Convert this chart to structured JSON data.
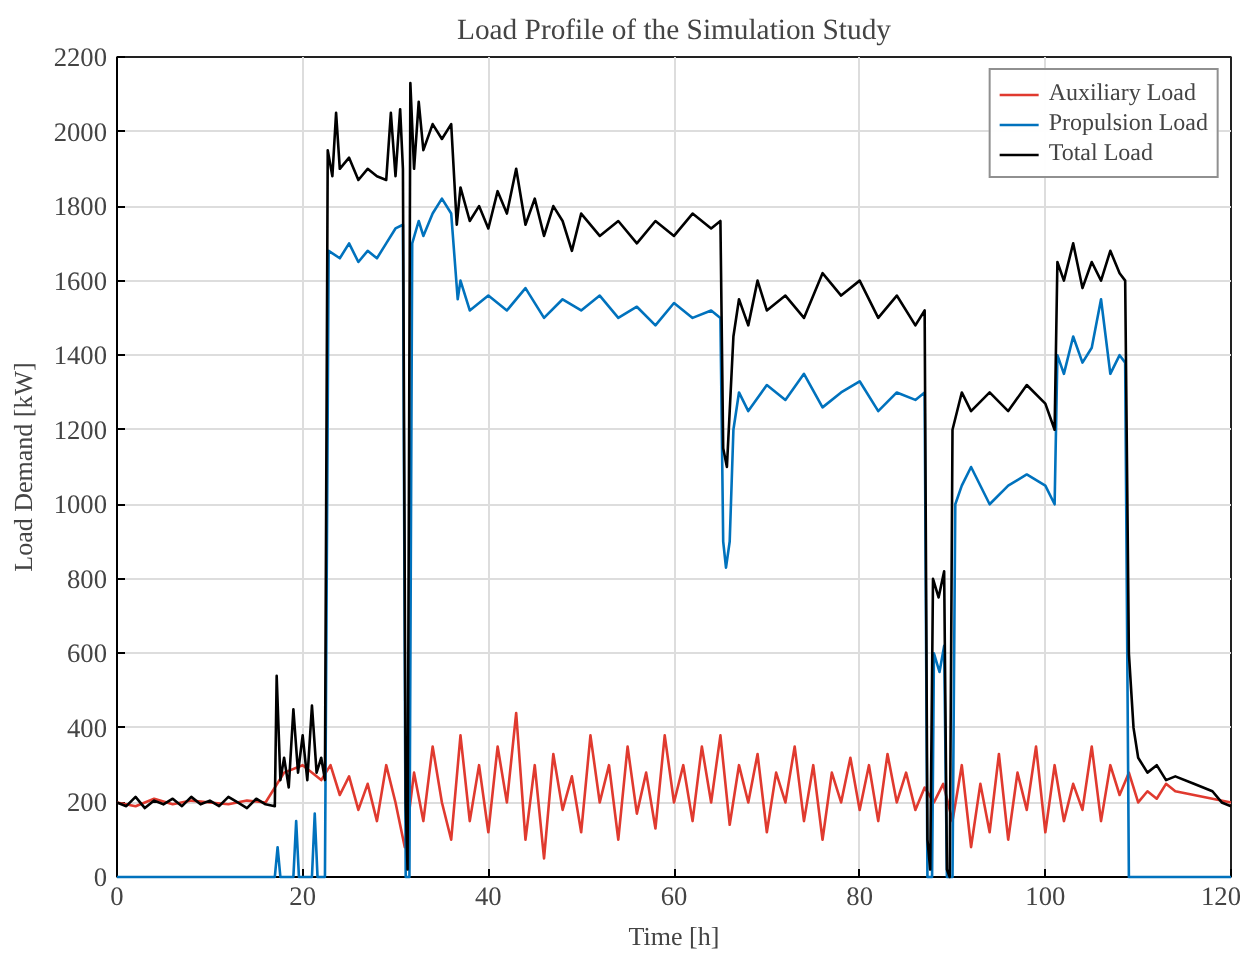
{
  "chart_data": {
    "type": "line",
    "title": "Load Profile of the Simulation Study",
    "xlabel": "Time [h]",
    "ylabel": "Load Demand [kW]",
    "xlim": [
      0,
      120
    ],
    "xticks": [
      0,
      20,
      40,
      60,
      80,
      100,
      120
    ],
    "ylim": [
      0,
      2200
    ],
    "yticks": [
      0,
      200,
      400,
      600,
      800,
      1000,
      1200,
      1400,
      1600,
      1800,
      2000,
      2200
    ],
    "grid": true,
    "legend": "top right",
    "line_style": "solid",
    "series": [
      {
        "name": "Auxiliary Load",
        "color": "#e03a2f",
        "x": [
          0,
          2,
          4,
          6,
          8,
          10,
          12,
          14,
          16,
          18,
          20,
          22,
          23,
          24,
          25,
          26,
          27,
          28,
          29,
          30,
          31,
          32,
          33,
          34,
          35,
          36,
          37,
          38,
          39,
          40,
          41,
          42,
          43,
          44,
          45,
          46,
          47,
          48,
          49,
          50,
          51,
          52,
          53,
          54,
          55,
          56,
          57,
          58,
          59,
          60,
          61,
          62,
          63,
          64,
          65,
          66,
          67,
          68,
          69,
          70,
          71,
          72,
          73,
          74,
          75,
          76,
          77,
          78,
          79,
          80,
          81,
          82,
          83,
          84,
          85,
          86,
          87,
          88,
          89,
          90,
          91,
          92,
          93,
          94,
          95,
          96,
          97,
          98,
          99,
          100,
          101,
          102,
          103,
          104,
          105,
          106,
          107,
          108,
          109,
          110,
          111,
          112,
          113,
          114,
          116,
          118,
          120
        ],
        "values": [
          200,
          190,
          210,
          195,
          205,
          200,
          195,
          205,
          200,
          280,
          300,
          260,
          300,
          220,
          270,
          180,
          250,
          150,
          300,
          200,
          80,
          280,
          150,
          350,
          200,
          100,
          380,
          150,
          300,
          120,
          350,
          200,
          440,
          100,
          300,
          50,
          330,
          180,
          270,
          120,
          380,
          200,
          300,
          100,
          350,
          170,
          280,
          130,
          380,
          200,
          300,
          150,
          350,
          200,
          380,
          140,
          300,
          200,
          330,
          120,
          280,
          200,
          350,
          150,
          300,
          100,
          280,
          200,
          320,
          180,
          300,
          150,
          330,
          200,
          280,
          180,
          240,
          200,
          250,
          150,
          300,
          80,
          250,
          120,
          330,
          100,
          280,
          180,
          350,
          120,
          300,
          150,
          250,
          180,
          350,
          150,
          300,
          220,
          280,
          200,
          230,
          210,
          250,
          230,
          220,
          210,
          200
        ]
      },
      {
        "name": "Propulsion Load",
        "color": "#0072bd",
        "x": [
          0,
          17,
          17.3,
          17.6,
          19,
          19.3,
          19.6,
          21,
          21.3,
          21.6,
          22.4,
          22.8,
          24,
          25,
          26,
          27,
          28,
          29,
          30,
          30.8,
          31.1,
          31.5,
          31.8,
          32.5,
          33,
          34,
          35,
          36,
          36.7,
          37,
          38,
          40,
          42,
          44,
          46,
          48,
          50,
          52,
          54,
          56,
          58,
          60,
          62,
          64,
          65,
          65.3,
          65.6,
          66,
          66.4,
          67,
          68,
          70,
          72,
          74,
          76,
          78,
          80,
          82,
          84,
          86,
          87,
          87.3,
          87.8,
          88,
          88.6,
          89.1,
          89.4,
          90,
          90.3,
          91,
          92,
          94,
          96,
          98,
          100,
          101,
          101.3,
          102,
          103,
          104,
          105,
          106,
          107,
          108,
          108.6,
          109,
          120
        ],
        "values": [
          0,
          0,
          80,
          0,
          0,
          150,
          0,
          0,
          170,
          0,
          0,
          1680,
          1660,
          1700,
          1650,
          1680,
          1660,
          1700,
          1740,
          1750,
          0,
          0,
          1700,
          1760,
          1720,
          1780,
          1820,
          1780,
          1550,
          1600,
          1520,
          1560,
          1520,
          1580,
          1500,
          1550,
          1520,
          1560,
          1500,
          1530,
          1480,
          1540,
          1500,
          1520,
          1500,
          900,
          830,
          900,
          1200,
          1300,
          1250,
          1320,
          1280,
          1350,
          1260,
          1300,
          1330,
          1250,
          1300,
          1280,
          1300,
          0,
          0,
          600,
          550,
          620,
          0,
          0,
          1000,
          1050,
          1100,
          1000,
          1050,
          1080,
          1050,
          1000,
          1400,
          1350,
          1450,
          1380,
          1420,
          1550,
          1350,
          1400,
          1380,
          0,
          0
        ]
      },
      {
        "name": "Total Load",
        "color": "#000000",
        "x": [
          0,
          1,
          2,
          3,
          4,
          5,
          6,
          7,
          8,
          9,
          10,
          11,
          12,
          13,
          14,
          15,
          16,
          17,
          17.2,
          17.6,
          18,
          18.5,
          19,
          19.5,
          20,
          20.5,
          21,
          21.5,
          22,
          22.4,
          22.7,
          23.2,
          23.6,
          24,
          25,
          26,
          27,
          28,
          29,
          29.5,
          30,
          30.5,
          30.8,
          31.1,
          31.3,
          31.6,
          32,
          32.5,
          33,
          34,
          35,
          36,
          36.6,
          37,
          38,
          39,
          40,
          41,
          42,
          43,
          44,
          45,
          46,
          47,
          48,
          49,
          50,
          52,
          54,
          56,
          58,
          60,
          62,
          64,
          65,
          65.3,
          65.7,
          66,
          66.4,
          67,
          68,
          69,
          70,
          72,
          74,
          76,
          78,
          80,
          82,
          84,
          86,
          87,
          87.3,
          87.6,
          87.9,
          88.5,
          89.1,
          89.4,
          89.7,
          90,
          91,
          92,
          94,
          96,
          98,
          100,
          101,
          101.3,
          102,
          103,
          104,
          105,
          106,
          107,
          108,
          108.6,
          109,
          109.5,
          110,
          111,
          112,
          113,
          114,
          116,
          118,
          119,
          120
        ],
        "values": [
          200,
          190,
          215,
          185,
          205,
          195,
          210,
          190,
          215,
          195,
          205,
          190,
          215,
          200,
          185,
          210,
          195,
          190,
          540,
          260,
          320,
          240,
          450,
          280,
          380,
          260,
          460,
          280,
          320,
          260,
          1950,
          1880,
          2050,
          1900,
          1930,
          1870,
          1900,
          1880,
          1870,
          2050,
          1880,
          2060,
          1900,
          200,
          20,
          2130,
          1900,
          2080,
          1950,
          2020,
          1980,
          2020,
          1750,
          1850,
          1760,
          1800,
          1740,
          1840,
          1780,
          1900,
          1750,
          1820,
          1720,
          1800,
          1760,
          1680,
          1780,
          1720,
          1760,
          1700,
          1760,
          1720,
          1780,
          1740,
          1760,
          1150,
          1100,
          1250,
          1450,
          1550,
          1480,
          1600,
          1520,
          1560,
          1500,
          1620,
          1560,
          1600,
          1500,
          1560,
          1480,
          1520,
          100,
          20,
          800,
          750,
          820,
          20,
          0,
          1200,
          1300,
          1250,
          1300,
          1250,
          1320,
          1270,
          1200,
          1650,
          1600,
          1700,
          1580,
          1650,
          1600,
          1680,
          1620,
          1600,
          600,
          400,
          320,
          280,
          300,
          260,
          270,
          250,
          230,
          200,
          190
        ]
      }
    ]
  }
}
